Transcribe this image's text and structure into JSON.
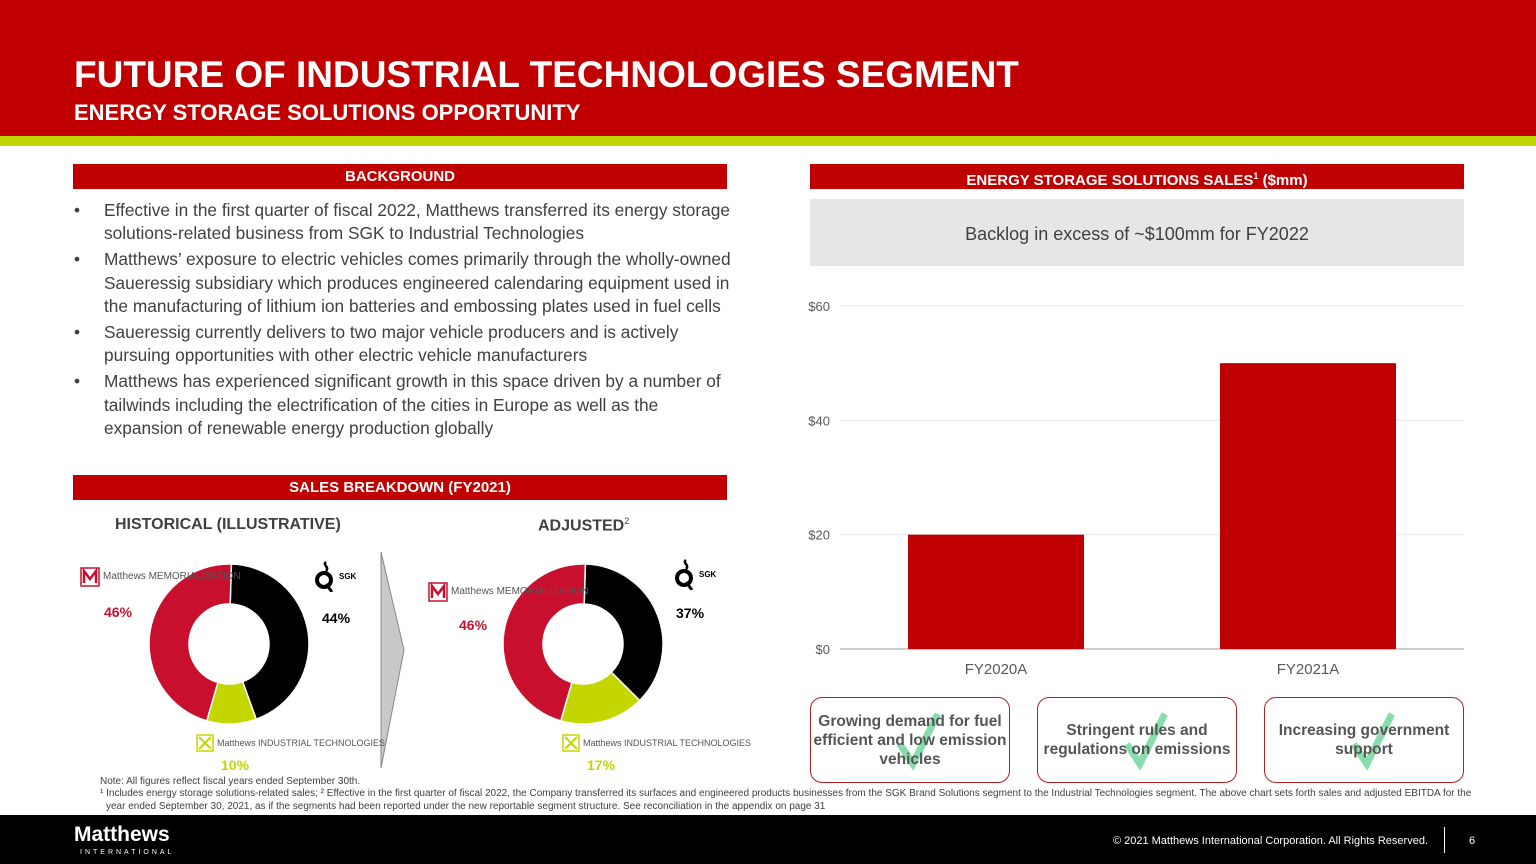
{
  "header": {
    "title": "FUTURE OF INDUSTRIAL TECHNOLOGIES SEGMENT",
    "subtitle": "ENERGY STORAGE SOLUTIONS OPPORTUNITY"
  },
  "background": {
    "heading": "BACKGROUND",
    "bullets": [
      "Effective in the first quarter of fiscal 2022, Matthews transferred its energy storage solutions-related business from SGK to Industrial Technologies",
      "Matthews’ exposure to electric vehicles comes primarily through the wholly-owned Saueressig subsidiary which produces engineered calendaring equipment used in the manufacturing of lithium ion batteries and embossing plates used in fuel cells",
      "Saueressig currently delivers to two major vehicle producers and is actively pursuing opportunities with other electric vehicle manufacturers",
      "Matthews has experienced significant growth in this space driven by a number of tailwinds including the electrification of the cities in Europe as well as the expansion of renewable energy production globally"
    ]
  },
  "breakdown": {
    "heading": "SALES BREAKDOWN (FY2021)",
    "logos": {
      "memorialization": "Matthews MEMORIALIZATION",
      "sgk": "SGK",
      "industrial": "Matthews INDUSTRIAL TECHNOLOGIES"
    }
  },
  "chart_data": [
    {
      "type": "pie",
      "title": "HISTORICAL (ILLUSTRATIVE)",
      "categories": [
        "SGK",
        "Industrial Technologies",
        "Memorialization"
      ],
      "values": [
        44,
        10,
        46
      ],
      "labels": [
        "44%",
        "10%",
        "46%"
      ],
      "colors": [
        "#000000",
        "#c4d600",
        "#c8102e"
      ]
    },
    {
      "type": "pie",
      "title": "ADJUSTED",
      "title_sup": "2",
      "categories": [
        "SGK",
        "Industrial Technologies",
        "Memorialization"
      ],
      "values": [
        37,
        17,
        46
      ],
      "labels": [
        "37%",
        "17%",
        "46%"
      ],
      "colors": [
        "#000000",
        "#c4d600",
        "#c8102e"
      ]
    },
    {
      "type": "bar",
      "title": "ENERGY STORAGE SOLUTIONS SALES",
      "title_sup": "1",
      "title_suffix": " ($mm)",
      "categories": [
        "FY2020A",
        "FY2021A"
      ],
      "values": [
        20,
        50
      ],
      "ylim": [
        0,
        60
      ],
      "yticks": [
        0,
        20,
        40,
        60
      ],
      "ytick_labels": [
        "$0",
        "$20",
        "$40",
        "$60"
      ],
      "grid": true,
      "color": "#c00000"
    }
  ],
  "backlog": "Backlog in excess of ~$100mm for FY2022",
  "drivers": [
    "Growing demand for fuel efficient and low emission vehicles",
    "Stringent rules and regulations on emissions",
    "Increasing government support"
  ],
  "notes": {
    "note": "Note:  All figures reflect fiscal years ended September 30th.",
    "footnote": "¹ Includes energy storage solutions-related sales; ² Effective in the first quarter of fiscal 2022, the Company transferred its surfaces and engineered products businesses from the SGK Brand Solutions segment to the Industrial Technologies segment. The above chart sets forth sales and adjusted EBITDA for the year ended September 30, 2021, as if the segments had been reported under the new reportable segment structure. See reconciliation in the appendix on page 31"
  },
  "footer": {
    "brand": "Matthews",
    "brand_sub": "INTERNATIONAL",
    "copyright": "© 2021 Matthews International Corporation. All Rights Reserved.",
    "page": "6"
  }
}
